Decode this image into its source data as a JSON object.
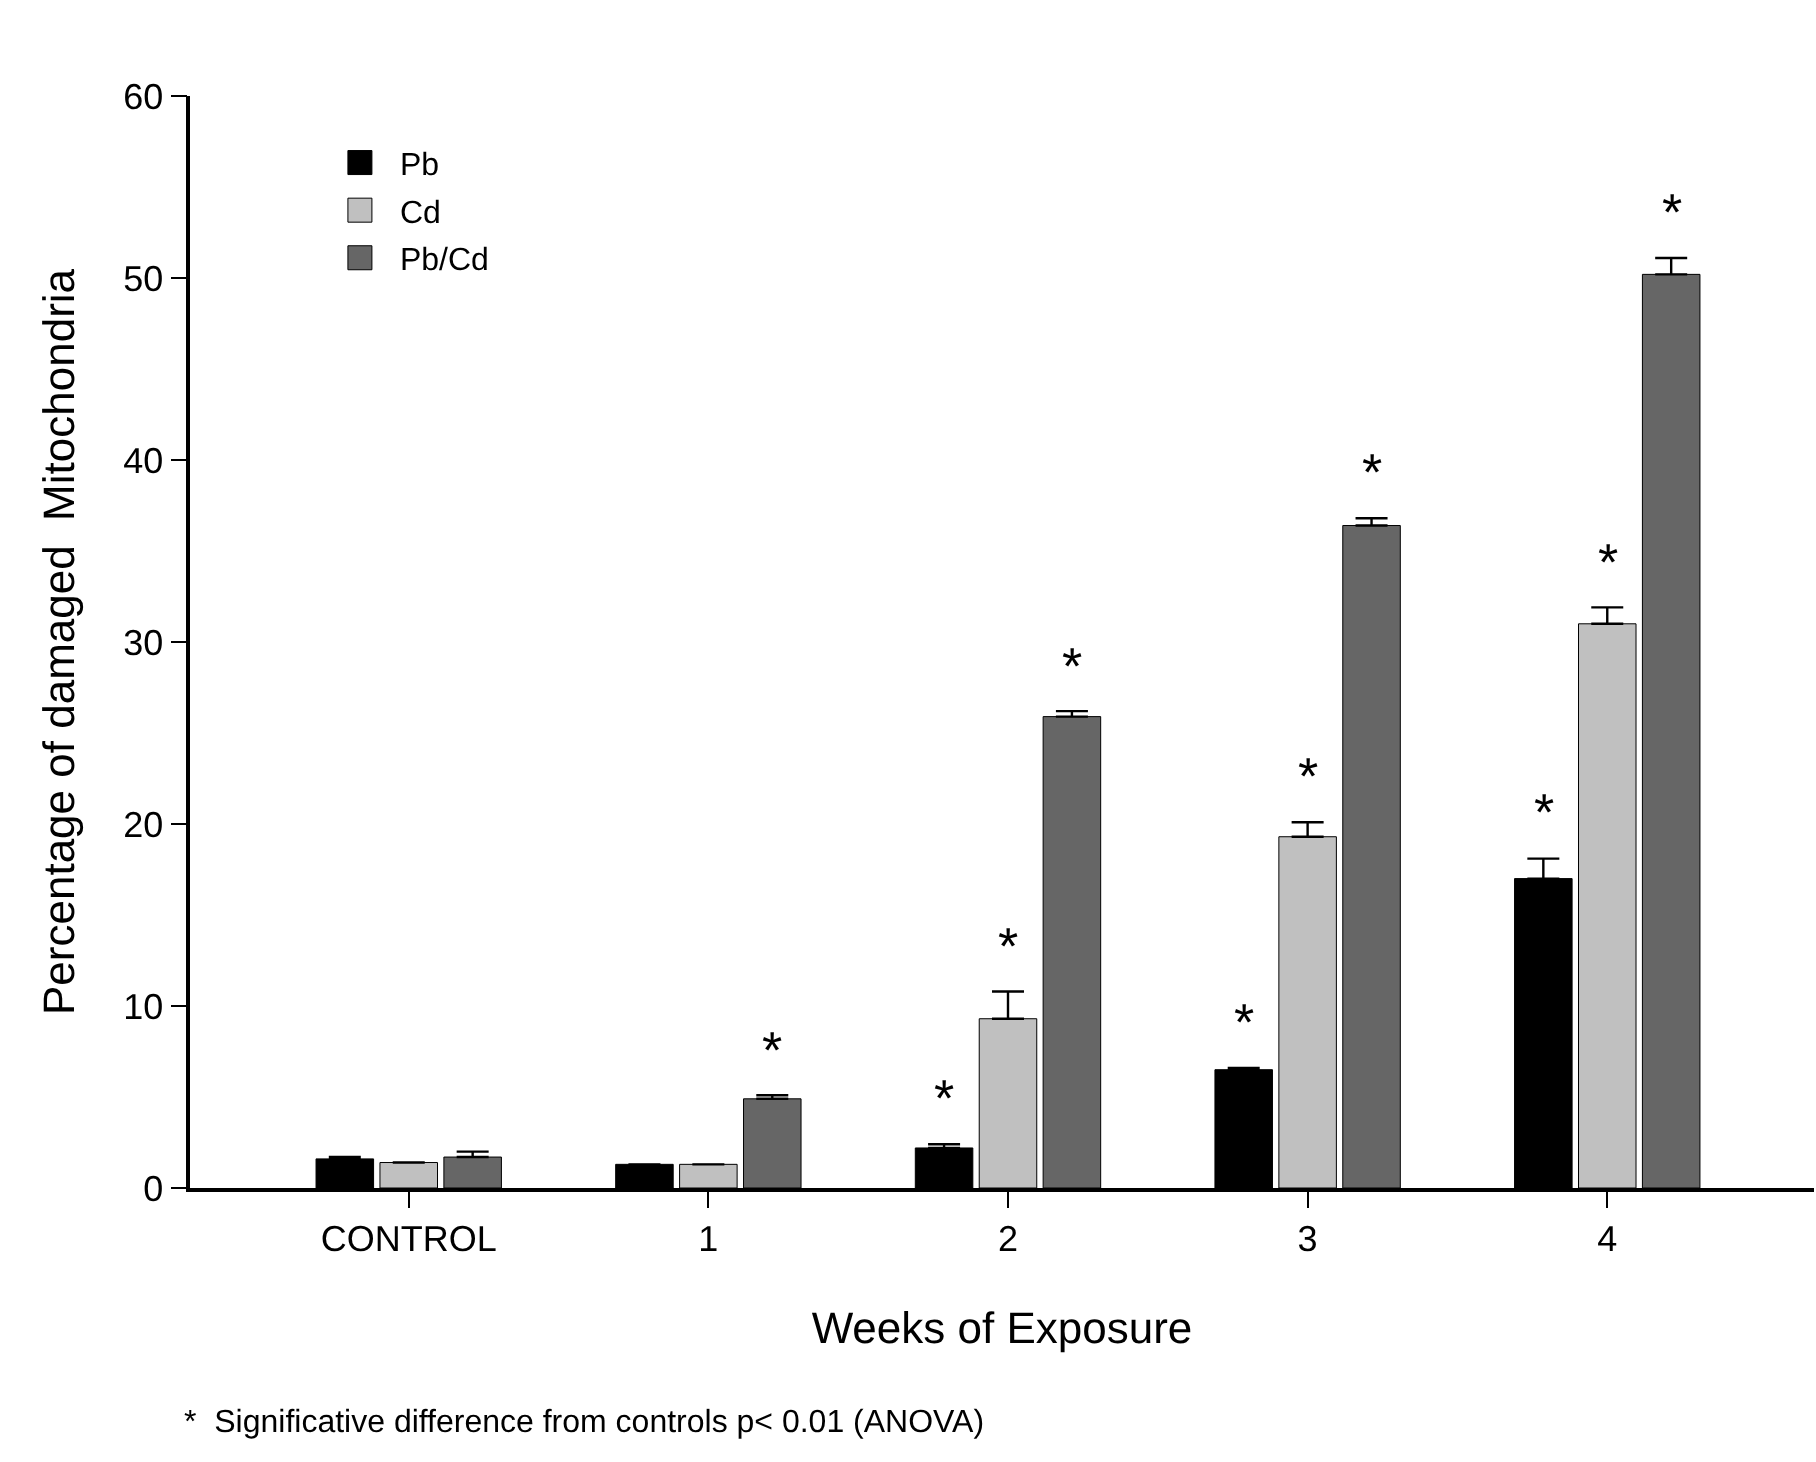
{
  "chart_data": {
    "type": "bar",
    "xlabel": "Weeks of Exposure",
    "ylabel": "Percentage of damaged  Mitochondria",
    "categories": [
      "CONTROL",
      "1",
      "2",
      "3",
      "4"
    ],
    "series": [
      {
        "name": "Pb",
        "color": "#000000",
        "values": [
          1.6,
          1.3,
          2.2,
          6.5,
          17.0
        ],
        "errors": [
          [
            1.6,
            1.7
          ],
          [
            1.3,
            1.3
          ],
          [
            2.2,
            2.4
          ],
          [
            6.5,
            6.6
          ],
          [
            17.0,
            18.1
          ]
        ],
        "value_labels": [
          null,
          null,
          "*",
          "*",
          "*"
        ]
      },
      {
        "name": "Cd",
        "color": "#c0c0c0",
        "values": [
          1.4,
          1.3,
          9.3,
          19.3,
          31.0
        ],
        "errors": [
          [
            1.4,
            1.4
          ],
          [
            1.3,
            1.3
          ],
          [
            9.3,
            10.8
          ],
          [
            19.3,
            20.1
          ],
          [
            31.0,
            31.9
          ]
        ],
        "value_labels": [
          null,
          null,
          "*",
          "*",
          "*"
        ]
      },
      {
        "name": "Pb/Cd",
        "color": "#666666",
        "values": [
          1.7,
          4.9,
          25.9,
          36.4,
          50.2
        ],
        "errors": [
          [
            1.7,
            2.0
          ],
          [
            4.9,
            5.1
          ],
          [
            25.9,
            26.2
          ],
          [
            36.4,
            36.8
          ],
          [
            50.2,
            51.1
          ]
        ],
        "value_labels": [
          null,
          "*",
          "*",
          "*",
          "*"
        ]
      }
    ],
    "ylim": [
      0,
      60
    ],
    "yticks": [
      0,
      10,
      20,
      30,
      40,
      50,
      60
    ],
    "grid": false,
    "legend": "top left",
    "annotations": [
      "*  Significative difference from controls p< 0.01 (ANOVA)"
    ]
  }
}
